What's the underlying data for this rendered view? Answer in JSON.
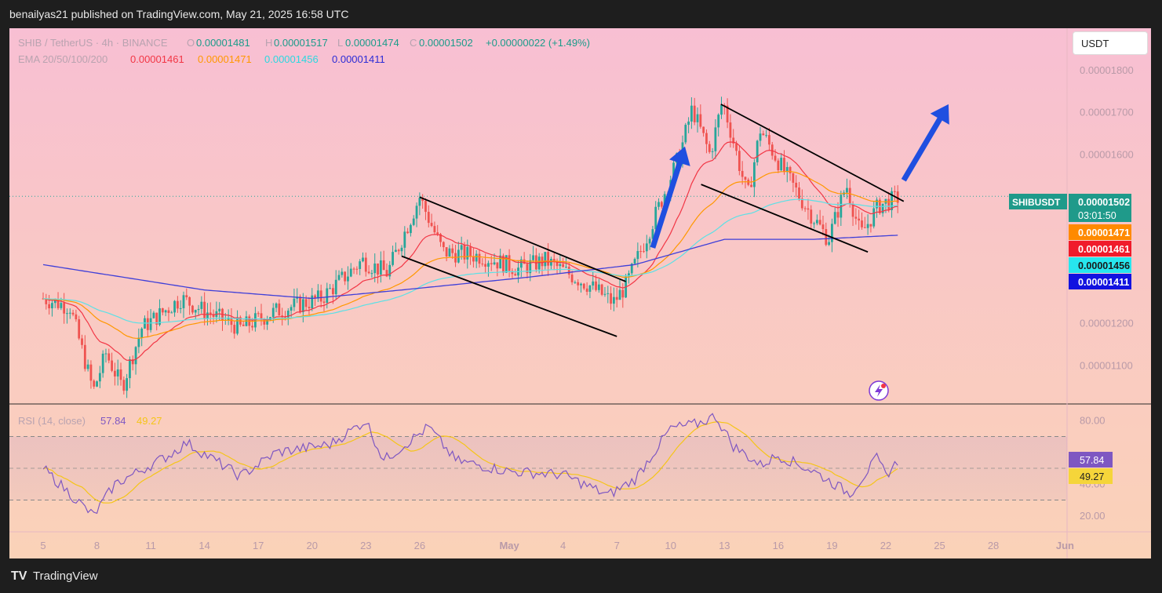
{
  "header": {
    "published": "benailyas21 published on TradingView.com, May 21, 2025 16:58 UTC"
  },
  "footer": {
    "brand": "TradingView",
    "logo": "TV"
  },
  "toolbar": {
    "currency_button": "USDT"
  },
  "legend": {
    "symbol": "SHIB / TetherUS · 4h · BINANCE",
    "open_label": "O",
    "open": "0.00001481",
    "high_label": "H",
    "high": "0.00001517",
    "low_label": "L",
    "low": "0.00001474",
    "close_label": "C",
    "close": "0.00001502",
    "change": "+0.00000022 (+1.49%)",
    "ema_label": "EMA 20/50/100/200",
    "ema20": "0.00001461",
    "ema50": "0.00001471",
    "ema100": "0.00001456",
    "ema200": "0.00001411",
    "rsi_label": "RSI (14, close)",
    "rsi": "57.84",
    "rsi_ma": "49.27"
  },
  "colors": {
    "up": "#26a69a",
    "down": "#ef5350",
    "ema20": "#f23645",
    "ema50": "#ff9800",
    "ema100": "#5ce1e6",
    "ema200": "#3f3fd8",
    "rsi": "#7e57c2",
    "rsi_ma": "#f5c518",
    "arrow": "#1f4fe0"
  },
  "price_tags": {
    "symbol": "SHIBUSDT",
    "price": "0.00001502",
    "countdown": "03:01:50",
    "ema50": "0.00001471",
    "ema20": "0.00001461",
    "ema100": "0.00001456",
    "ema200": "0.00001411",
    "rsi": "57.84",
    "rsi_ma": "49.27"
  },
  "chart_data": {
    "type": "candlestick",
    "symbol": "SHIB / TetherUS",
    "interval": "4h",
    "exchange": "BINANCE",
    "y_axis_ticks": [
      "0.00001800",
      "0.00001700",
      "0.00001600",
      "0.00001200",
      "0.00001100"
    ],
    "ylim": [
      1.01e-05,
      1.9e-05
    ],
    "rsi_axis_ticks": [
      "80.00",
      "40.00",
      "20.00"
    ],
    "rsi_ylim": [
      10,
      90
    ],
    "x_axis_ticks": [
      "5",
      "8",
      "11",
      "14",
      "17",
      "20",
      "23",
      "26",
      "May",
      "4",
      "7",
      "10",
      "13",
      "16",
      "19",
      "22",
      "25",
      "28",
      "Jun"
    ],
    "price_keypoints": [
      {
        "day": 5,
        "price": 1.26e-05
      },
      {
        "day": 6.5,
        "price": 1.24e-05
      },
      {
        "day": 7.8,
        "price": 1.04e-05
      },
      {
        "day": 8.5,
        "price": 1.13e-05
      },
      {
        "day": 9.4,
        "price": 1.05e-05
      },
      {
        "day": 10.5,
        "price": 1.19e-05
      },
      {
        "day": 12.7,
        "price": 1.26e-05
      },
      {
        "day": 14,
        "price": 1.23e-05
      },
      {
        "day": 16,
        "price": 1.19e-05
      },
      {
        "day": 18,
        "price": 1.23e-05
      },
      {
        "day": 20.5,
        "price": 1.26e-05
      },
      {
        "day": 22.8,
        "price": 1.35e-05
      },
      {
        "day": 24.2,
        "price": 1.32e-05
      },
      {
        "day": 26,
        "price": 1.5e-05
      },
      {
        "day": 27.3,
        "price": 1.37e-05
      },
      {
        "day": 29.5,
        "price": 1.36e-05
      },
      {
        "day": 31.5,
        "price": 1.33e-05
      },
      {
        "day": 33,
        "price": 1.35e-05
      },
      {
        "day": 35.5,
        "price": 1.29e-05
      },
      {
        "day": 36.8,
        "price": 1.25e-05
      },
      {
        "day": 37.5,
        "price": 1.29e-05
      },
      {
        "day": 38.8,
        "price": 1.42e-05
      },
      {
        "day": 40.5,
        "price": 1.6e-05
      },
      {
        "day": 41.2,
        "price": 1.71e-05
      },
      {
        "day": 42.2,
        "price": 1.6e-05
      },
      {
        "day": 42.9,
        "price": 1.73e-05
      },
      {
        "day": 44.3,
        "price": 1.5e-05
      },
      {
        "day": 45,
        "price": 1.66e-05
      },
      {
        "day": 46.2,
        "price": 1.57e-05
      },
      {
        "day": 47.5,
        "price": 1.48e-05
      },
      {
        "day": 48.8,
        "price": 1.4e-05
      },
      {
        "day": 49.8,
        "price": 1.53e-05
      },
      {
        "day": 50.6,
        "price": 1.41e-05
      },
      {
        "day": 51.6,
        "price": 1.48e-05
      },
      {
        "day": 52.8,
        "price": 1.5e-05
      }
    ],
    "ema200_keypoints": [
      {
        "day": 5,
        "price": 1.34e-05
      },
      {
        "day": 14,
        "price": 1.28e-05
      },
      {
        "day": 20,
        "price": 1.26e-05
      },
      {
        "day": 25,
        "price": 1.28e-05
      },
      {
        "day": 32,
        "price": 1.31e-05
      },
      {
        "day": 38,
        "price": 1.34e-05
      },
      {
        "day": 43,
        "price": 1.4e-05
      },
      {
        "day": 48,
        "price": 1.4e-05
      },
      {
        "day": 52.8,
        "price": 1.41e-05
      }
    ],
    "rsi_keypoints": [
      {
        "day": 5,
        "rsi": 50
      },
      {
        "day": 7.8,
        "rsi": 20
      },
      {
        "day": 9,
        "rsi": 40
      },
      {
        "day": 12,
        "rsi": 58
      },
      {
        "day": 13,
        "rsi": 66
      },
      {
        "day": 16,
        "rsi": 45
      },
      {
        "day": 18,
        "rsi": 60
      },
      {
        "day": 21,
        "rsi": 65
      },
      {
        "day": 23,
        "rsi": 80
      },
      {
        "day": 24,
        "rsi": 55
      },
      {
        "day": 26.5,
        "rsi": 76
      },
      {
        "day": 28,
        "rsi": 55
      },
      {
        "day": 31,
        "rsi": 48
      },
      {
        "day": 34,
        "rsi": 46
      },
      {
        "day": 36.5,
        "rsi": 33
      },
      {
        "day": 38,
        "rsi": 43
      },
      {
        "day": 40,
        "rsi": 75
      },
      {
        "day": 41.5,
        "rsi": 78
      },
      {
        "day": 42.5,
        "rsi": 83
      },
      {
        "day": 43.5,
        "rsi": 64
      },
      {
        "day": 45,
        "rsi": 52
      },
      {
        "day": 46,
        "rsi": 58
      },
      {
        "day": 48,
        "rsi": 48
      },
      {
        "day": 50,
        "rsi": 34
      },
      {
        "day": 51.5,
        "rsi": 56
      },
      {
        "day": 52,
        "rsi": 46
      },
      {
        "day": 53,
        "rsi": 58
      }
    ],
    "annotations": [
      {
        "type": "trendline",
        "from": {
          "day": 26,
          "price": 1.5e-05
        },
        "to": {
          "day": 37.5,
          "price": 1.3e-05
        }
      },
      {
        "type": "trendline",
        "from": {
          "day": 25,
          "price": 1.36e-05
        },
        "to": {
          "day": 37,
          "price": 1.17e-05
        }
      },
      {
        "type": "trendline",
        "from": {
          "day": 42.8,
          "price": 1.72e-05
        },
        "to": {
          "day": 53,
          "price": 1.49e-05
        }
      },
      {
        "type": "trendline",
        "from": {
          "day": 41.7,
          "price": 1.53e-05
        },
        "to": {
          "day": 51,
          "price": 1.37e-05
        }
      },
      {
        "type": "arrow",
        "from": {
          "day": 39,
          "price": 1.38e-05
        },
        "to": {
          "day": 40.8,
          "price": 1.62e-05
        }
      },
      {
        "type": "arrow",
        "from": {
          "day": 53,
          "price": 1.54e-05
        },
        "to": {
          "day": 55.5,
          "price": 1.72e-05
        }
      }
    ]
  }
}
